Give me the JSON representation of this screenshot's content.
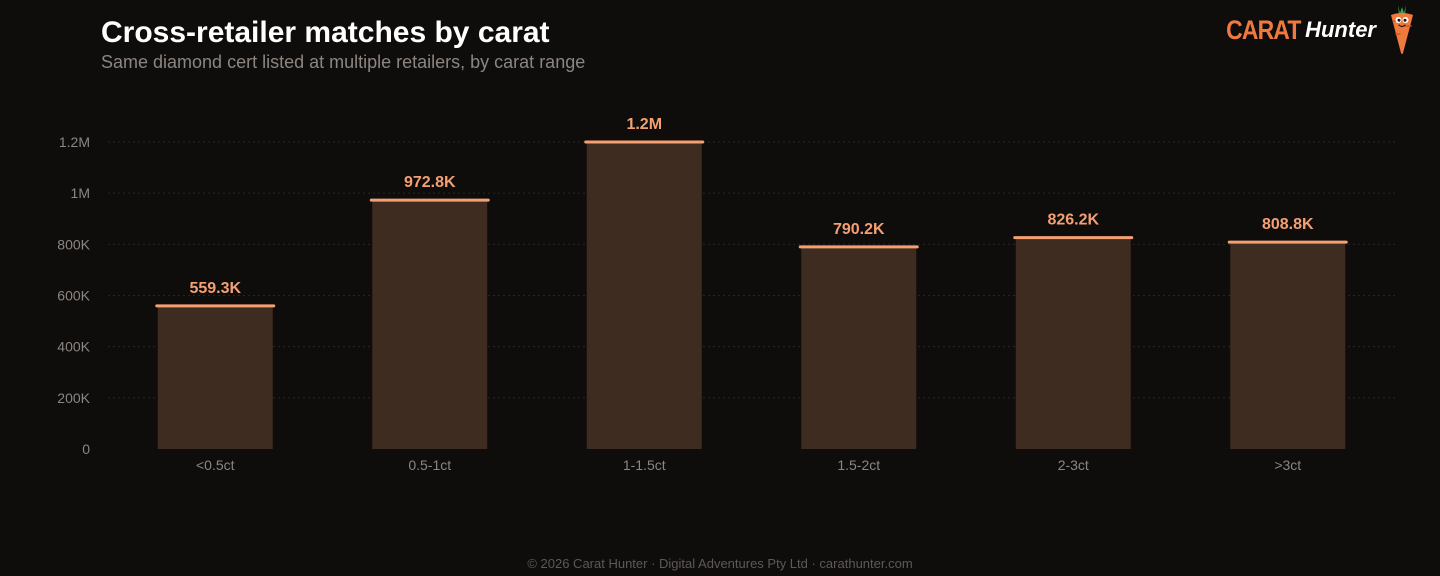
{
  "header": {
    "title": "Cross-retailer matches by carat",
    "subtitle": "Same diamond cert listed at multiple retailers, by carat range"
  },
  "brand": {
    "word1": "CARAT",
    "word2": "Hunter",
    "logo_icon": "carrot-mascot-icon"
  },
  "chart_data": {
    "type": "bar",
    "categories": [
      "<0.5ct",
      "0.5-1ct",
      "1-1.5ct",
      "1.5-2ct",
      "2-3ct",
      ">3ct"
    ],
    "values": [
      559300,
      972800,
      1200000,
      790200,
      826200,
      808800
    ],
    "value_labels": [
      "559.3K",
      "972.8K",
      "1.2M",
      "790.2K",
      "826.2K",
      "808.8K"
    ],
    "title": "Cross-retailer matches by carat",
    "subtitle": "Same diamond cert listed at multiple retailers, by carat range",
    "xlabel": "",
    "ylabel": "",
    "ylim": [
      0,
      1200000
    ],
    "yticks": [
      0,
      200000,
      400000,
      600000,
      800000,
      1000000,
      1200000
    ],
    "ytick_labels": [
      "0",
      "200K",
      "400K",
      "600K",
      "800K",
      "1M",
      "1.2M"
    ],
    "grid": true,
    "legend": "none"
  },
  "colors": {
    "background": "#0f0d0c",
    "bar_fill": "#3e2c21",
    "bar_cap": "#f4a072",
    "value_label": "#f4a072",
    "tick_label": "#8c8580",
    "grid": "#2a2522",
    "title": "#ffffff",
    "brand_accent": "#f07a3e"
  },
  "footer": {
    "text": "© 2026 Carat Hunter · Digital Adventures Pty Ltd · carathunter.com"
  }
}
